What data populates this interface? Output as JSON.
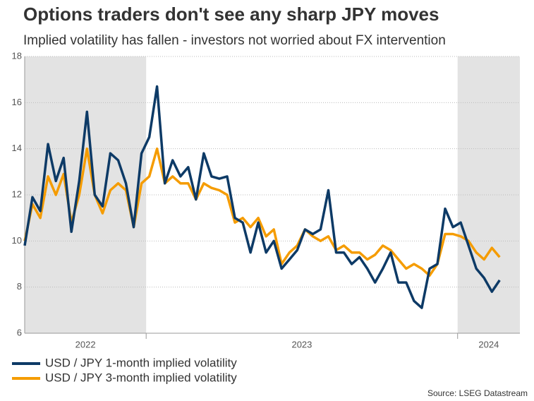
{
  "chart_data": {
    "type": "line",
    "title": "Options traders don't see any sharp JPY moves",
    "subtitle": "Implied volatility has fallen - investors not worried about FX intervention",
    "source": "Source: LSEG Datastream",
    "x": [
      2022.61,
      2022.635,
      2022.66,
      2022.685,
      2022.71,
      2022.735,
      2022.76,
      2022.785,
      2022.81,
      2022.835,
      2022.86,
      2022.885,
      2022.91,
      2022.935,
      2022.96,
      2022.985,
      2023.01,
      2023.035,
      2023.06,
      2023.085,
      2023.11,
      2023.135,
      2023.16,
      2023.185,
      2023.21,
      2023.235,
      2023.26,
      2023.285,
      2023.31,
      2023.335,
      2023.36,
      2023.385,
      2023.41,
      2023.435,
      2023.46,
      2023.485,
      2023.51,
      2023.535,
      2023.56,
      2023.585,
      2023.61,
      2023.635,
      2023.66,
      2023.685,
      2023.71,
      2023.735,
      2023.76,
      2023.785,
      2023.81,
      2023.835,
      2023.86,
      2023.885,
      2023.91,
      2023.935,
      2023.96,
      2023.985,
      2024.01,
      2024.035,
      2024.06,
      2024.085,
      2024.11,
      2024.135
    ],
    "series": [
      {
        "name": "USD / JPY 1-month implied volatility",
        "color": "#0d3a66",
        "values": [
          9.8,
          11.9,
          11.3,
          14.2,
          12.6,
          13.6,
          10.4,
          12.6,
          15.6,
          12.0,
          11.5,
          13.8,
          13.5,
          12.5,
          10.6,
          13.8,
          14.5,
          16.7,
          12.5,
          13.5,
          12.8,
          13.2,
          11.8,
          13.8,
          12.8,
          12.7,
          12.8,
          11.0,
          10.8,
          9.5,
          10.8,
          9.5,
          10.0,
          8.8,
          9.2,
          9.6,
          10.5,
          10.3,
          10.5,
          12.2,
          9.5,
          9.5,
          9.0,
          9.3,
          8.8,
          8.2,
          8.8,
          9.5,
          8.2,
          8.2,
          7.4,
          7.1,
          8.8,
          9.0,
          11.4,
          10.6,
          10.8,
          9.8,
          8.8,
          8.4,
          7.8,
          8.3
        ]
      },
      {
        "name": "USD / JPY 3-month implied volatility",
        "color": "#f59c00",
        "values": [
          10.0,
          11.6,
          11.0,
          12.8,
          12.0,
          12.9,
          10.8,
          12.0,
          14.0,
          12.0,
          11.2,
          12.2,
          12.5,
          12.2,
          10.6,
          12.5,
          12.8,
          14.0,
          12.5,
          12.8,
          12.5,
          12.5,
          11.8,
          12.5,
          12.3,
          12.2,
          12.0,
          10.8,
          11.0,
          10.6,
          11.0,
          10.2,
          10.5,
          9.0,
          9.5,
          9.8,
          10.5,
          10.2,
          10.0,
          10.2,
          9.6,
          9.8,
          9.5,
          9.5,
          9.2,
          9.4,
          9.8,
          9.6,
          9.2,
          8.8,
          9.0,
          8.8,
          8.5,
          9.0,
          10.3,
          10.3,
          10.2,
          10.0,
          9.5,
          9.2,
          9.7,
          9.3
        ]
      }
    ],
    "xlim": [
      2022.61,
      2024.2
    ],
    "xticks": [
      {
        "value": 2022.805,
        "label": "2022"
      },
      {
        "value": 2023.5,
        "label": "2023"
      },
      {
        "value": 2024.1,
        "label": "2024"
      }
    ],
    "year_boundaries": [
      2023,
      2024
    ],
    "shaded_ranges": [
      [
        2022.61,
        2023
      ],
      [
        2024,
        2024.2
      ]
    ],
    "shade_color": "#e3e3e3",
    "ylim": [
      6,
      18
    ],
    "yticks": [
      6,
      8,
      10,
      12,
      14,
      16,
      18
    ],
    "grid": true
  }
}
